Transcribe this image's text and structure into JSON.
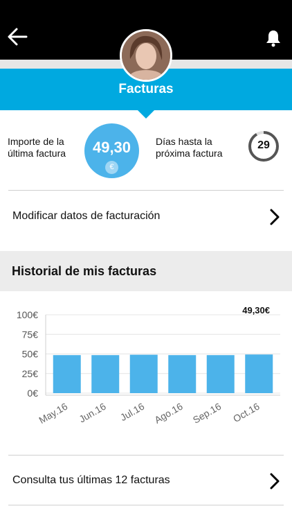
{
  "header": {
    "title": "Facturas"
  },
  "summary": {
    "last_bill_label_line1": "Importe de la",
    "last_bill_label_line2": "última factura",
    "last_bill_amount": "49,30",
    "currency_symbol": "€",
    "days_label_line1": "Días hasta la",
    "days_label_line2": "próxima factura",
    "days_value": "29"
  },
  "links": {
    "modify_billing": "Modificar datos de facturación",
    "view_last_bills": "Consulta tus últimas 12 facturas"
  },
  "history": {
    "section_title": "Historial de mis facturas"
  },
  "colors": {
    "header_bg": "#000000",
    "brand_blue": "#00a9e0",
    "bar_blue": "#4cb3ea"
  },
  "chart_data": {
    "type": "bar",
    "categories": [
      "May.16",
      "Jun.16",
      "Jul.16",
      "Ago.16",
      "Sep.16",
      "Oct.16"
    ],
    "values": [
      48.5,
      48.5,
      49.0,
      48.5,
      48.5,
      49.3
    ],
    "yticks": [
      "100€",
      "75€",
      "50€",
      "25€",
      "0€"
    ],
    "ylim": [
      0,
      100
    ],
    "highlight_label": "49,30€",
    "grid": true
  }
}
